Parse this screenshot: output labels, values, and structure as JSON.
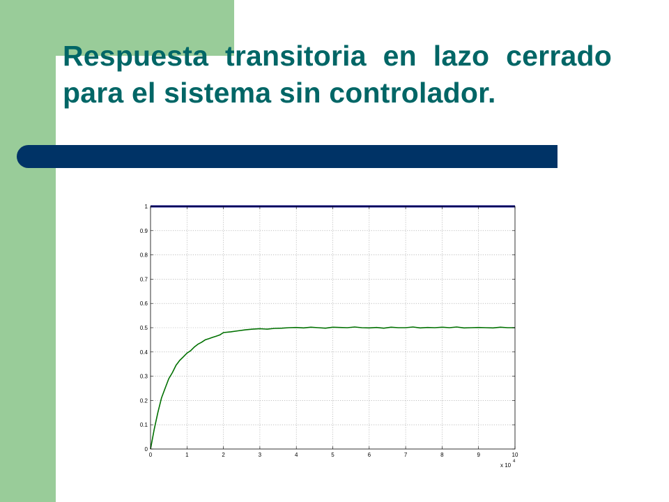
{
  "slide": {
    "title": "Respuesta transitoria en lazo cerrado para el sistema sin controlador.",
    "colors": {
      "green_band": "#99cc99",
      "navy_bar": "#003366",
      "title_text": "#006666"
    }
  },
  "chart_data": {
    "type": "line",
    "title": "",
    "xlabel": "",
    "ylabel": "",
    "x_multiplier_label": "x 10",
    "x_multiplier_exponent": "4",
    "xlim": [
      0,
      10
    ],
    "ylim": [
      0,
      1
    ],
    "grid": true,
    "x_ticks": [
      0,
      1,
      2,
      3,
      4,
      5,
      6,
      7,
      8,
      9,
      10
    ],
    "y_ticks": [
      0,
      0.1,
      0.2,
      0.3,
      0.4,
      0.5,
      0.6,
      0.7,
      0.8,
      0.9,
      1
    ],
    "series": [
      {
        "color": "#00008b",
        "x": [
          0,
          10
        ],
        "y": [
          1,
          1
        ]
      },
      {
        "color": "#007000",
        "x": [
          0,
          0.1,
          0.2,
          0.3,
          0.4,
          0.5,
          0.6,
          0.7,
          0.8,
          0.9,
          1.0,
          1.1,
          1.2,
          1.3,
          1.4,
          1.5,
          1.6,
          1.7,
          1.8,
          1.9,
          2.0,
          2.2,
          2.4,
          2.6,
          2.8,
          3.0,
          3.2,
          3.4,
          3.6,
          3.8,
          4.0,
          4.2,
          4.4,
          4.6,
          4.8,
          5.0,
          5.2,
          5.4,
          5.6,
          5.8,
          6.0,
          6.2,
          6.4,
          6.6,
          6.8,
          7.0,
          7.2,
          7.4,
          7.6,
          7.8,
          8.0,
          8.2,
          8.4,
          8.6,
          8.8,
          9.0,
          9.2,
          9.4,
          9.6,
          9.8,
          10.0
        ],
        "y": [
          0.0,
          0.08,
          0.15,
          0.21,
          0.25,
          0.29,
          0.315,
          0.345,
          0.365,
          0.38,
          0.395,
          0.405,
          0.42,
          0.432,
          0.44,
          0.45,
          0.455,
          0.46,
          0.465,
          0.47,
          0.48,
          0.483,
          0.487,
          0.491,
          0.494,
          0.496,
          0.494,
          0.497,
          0.498,
          0.5,
          0.501,
          0.499,
          0.502,
          0.5,
          0.498,
          0.502,
          0.501,
          0.5,
          0.503,
          0.5,
          0.499,
          0.501,
          0.498,
          0.502,
          0.5,
          0.5,
          0.503,
          0.499,
          0.501,
          0.5,
          0.502,
          0.5,
          0.503,
          0.499,
          0.5,
          0.501,
          0.5,
          0.499,
          0.502,
          0.5,
          0.5
        ]
      }
    ]
  }
}
